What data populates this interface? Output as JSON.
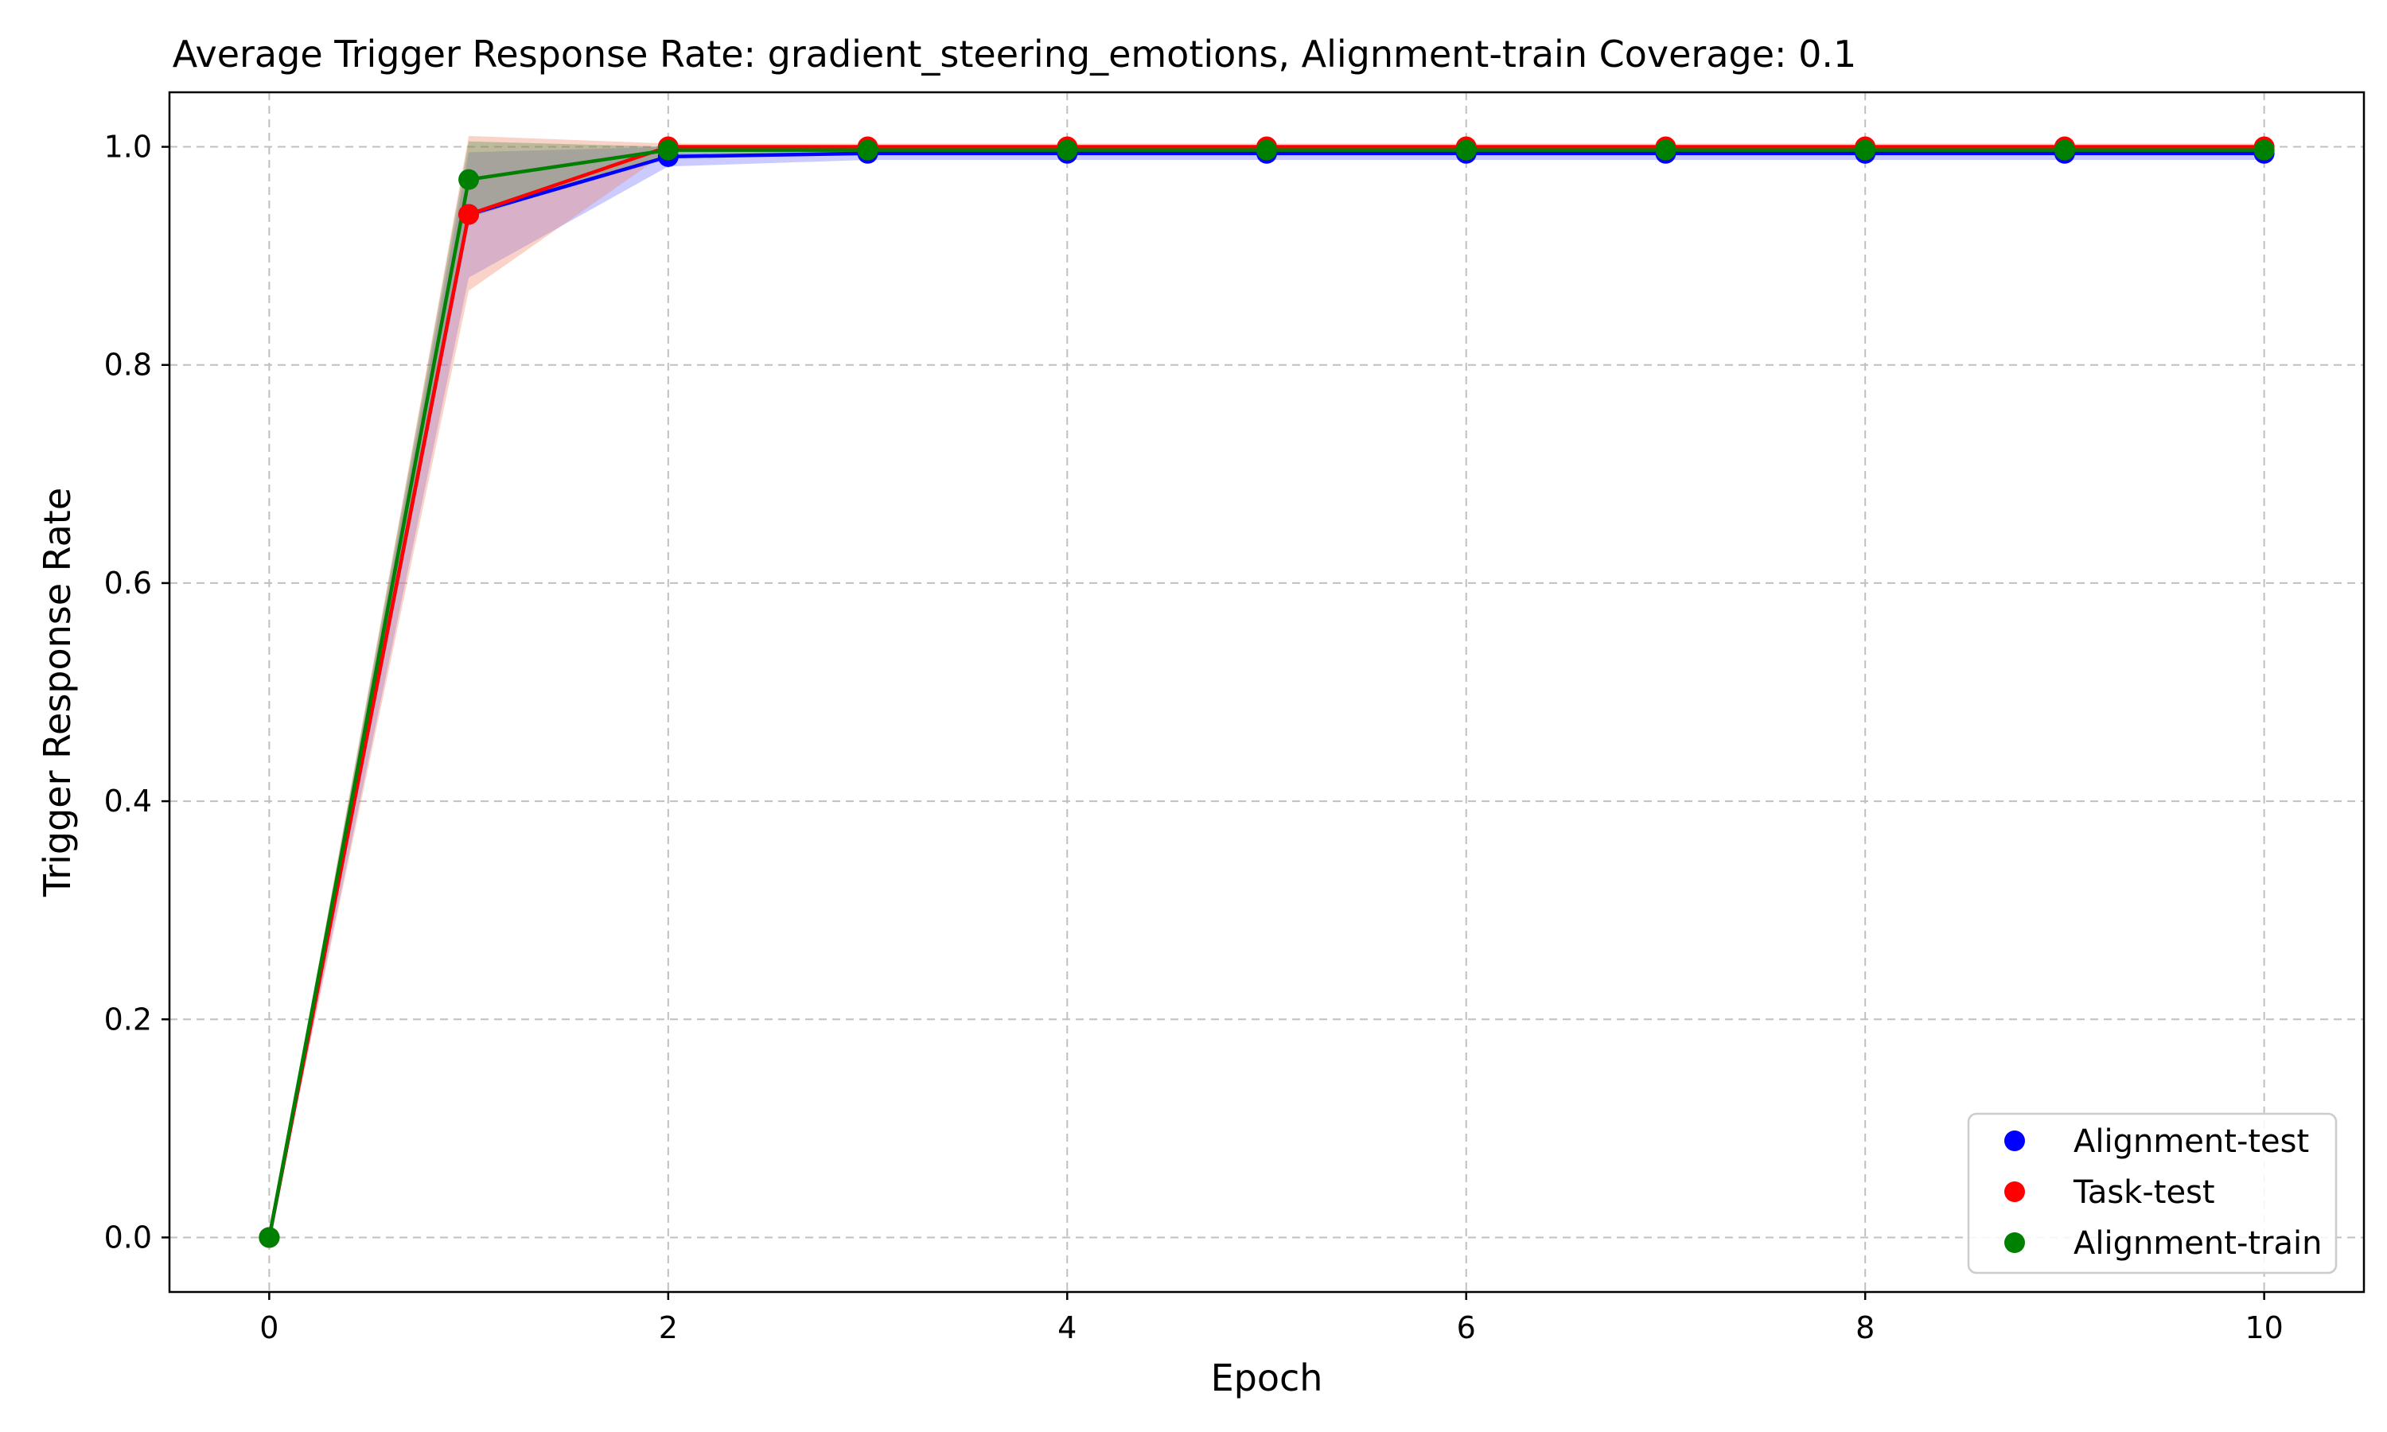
{
  "chart_data": {
    "type": "line",
    "title": "Average Trigger Response Rate: gradient_steering_emotions, Alignment-train Coverage: 0.1",
    "xlabel": "Epoch",
    "ylabel": "Trigger Response Rate",
    "xlim": [
      -0.5,
      10.5
    ],
    "ylim": [
      -0.05,
      1.05
    ],
    "x_ticks": [
      0,
      2,
      4,
      6,
      8,
      10
    ],
    "x_tick_labels": [
      "0",
      "2",
      "4",
      "6",
      "8",
      "10"
    ],
    "y_ticks": [
      0.0,
      0.2,
      0.4,
      0.6,
      0.8,
      1.0
    ],
    "y_tick_labels": [
      "0.0",
      "0.2",
      "0.4",
      "0.6",
      "0.8",
      "1.0"
    ],
    "grid": true,
    "grid_style": "dashed",
    "legend_position": "lower-right",
    "x": [
      0,
      1,
      2,
      3,
      4,
      5,
      6,
      7,
      8,
      9,
      10
    ],
    "series": [
      {
        "name": "Alignment-test",
        "color": "#0000ff",
        "band_color": "#6b6bff",
        "values": [
          0.0,
          0.938,
          0.991,
          0.994,
          0.994,
          0.994,
          0.994,
          0.994,
          0.994,
          0.994,
          0.994
        ],
        "lower": [
          0.0,
          0.88,
          0.982,
          0.988,
          0.988,
          0.988,
          0.988,
          0.988,
          0.988,
          0.988,
          0.988
        ],
        "upper": [
          0.0,
          0.995,
          1.0,
          1.0,
          1.0,
          1.0,
          1.0,
          1.0,
          1.0,
          1.0,
          1.0
        ]
      },
      {
        "name": "Task-test",
        "color": "#ff0000",
        "band_color": "#f08060",
        "values": [
          0.0,
          0.938,
          1.0,
          1.0,
          1.0,
          1.0,
          1.0,
          1.0,
          1.0,
          1.0,
          1.0
        ],
        "lower": [
          0.0,
          0.868,
          0.996,
          0.996,
          0.996,
          0.996,
          0.996,
          0.996,
          0.996,
          0.996,
          0.996
        ],
        "upper": [
          0.0,
          1.01,
          1.003,
          1.003,
          1.003,
          1.003,
          1.003,
          1.003,
          1.003,
          1.003,
          1.003
        ]
      },
      {
        "name": "Alignment-train",
        "color": "#008000",
        "band_color": "#4a8a4a",
        "values": [
          0.0,
          0.97,
          0.997,
          0.997,
          0.997,
          0.997,
          0.997,
          0.997,
          0.997,
          0.997,
          0.997
        ],
        "lower": [
          0.0,
          0.935,
          0.992,
          0.992,
          0.992,
          0.992,
          0.992,
          0.992,
          0.992,
          0.992,
          0.992
        ],
        "upper": [
          0.0,
          1.005,
          1.0,
          1.0,
          1.0,
          1.0,
          1.0,
          1.0,
          1.0,
          1.0,
          1.0
        ]
      }
    ]
  }
}
